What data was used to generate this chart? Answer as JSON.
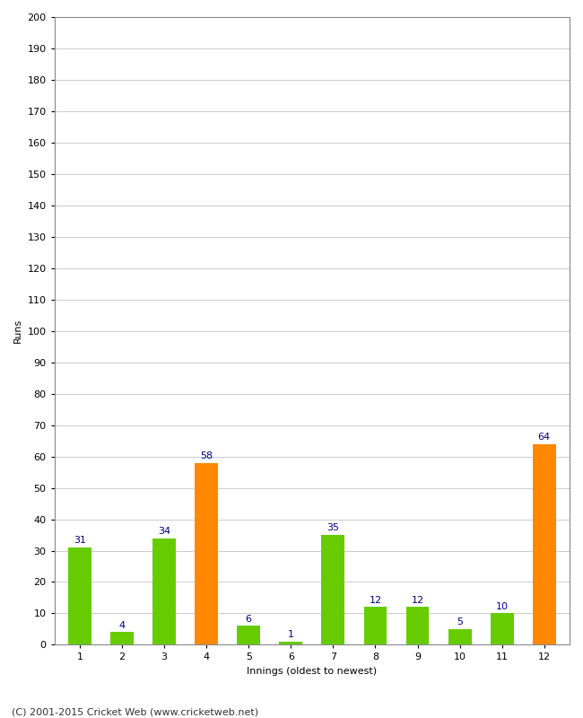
{
  "xlabel": "Innings (oldest to newest)",
  "ylabel": "Runs",
  "categories": [
    1,
    2,
    3,
    4,
    5,
    6,
    7,
    8,
    9,
    10,
    11,
    12
  ],
  "values": [
    31,
    4,
    34,
    58,
    6,
    1,
    35,
    12,
    12,
    5,
    10,
    64
  ],
  "bar_colors": [
    "#66cc00",
    "#66cc00",
    "#66cc00",
    "#ff8800",
    "#66cc00",
    "#66cc00",
    "#66cc00",
    "#66cc00",
    "#66cc00",
    "#66cc00",
    "#66cc00",
    "#ff8800"
  ],
  "ylim": [
    0,
    200
  ],
  "yticks": [
    0,
    10,
    20,
    30,
    40,
    50,
    60,
    70,
    80,
    90,
    100,
    110,
    120,
    130,
    140,
    150,
    160,
    170,
    180,
    190,
    200
  ],
  "label_color": "#000080",
  "label_fontsize": 8,
  "axis_label_fontsize": 8,
  "tick_fontsize": 8,
  "grid_color": "#cccccc",
  "background_color": "#ffffff",
  "plot_bg_color": "#ffffff",
  "footer": "(C) 2001-2015 Cricket Web (www.cricketweb.net)",
  "bar_width": 0.55
}
